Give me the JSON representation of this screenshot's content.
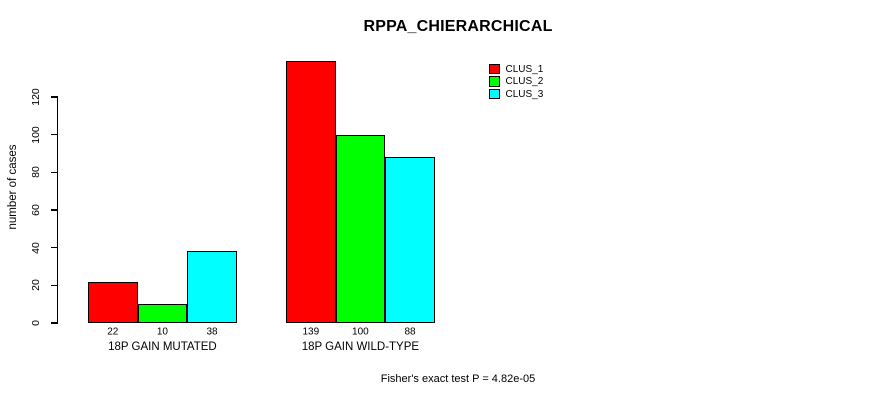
{
  "chart_data": {
    "type": "bar",
    "title": "RPPA_CHIERARCHICAL",
    "ylabel": "number of cases",
    "xlabel": "",
    "categories": [
      "18P GAIN MUTATED",
      "18P GAIN WILD-TYPE"
    ],
    "series": [
      {
        "name": "CLUS_1",
        "color": "#ff0000",
        "values": [
          22,
          139
        ]
      },
      {
        "name": "CLUS_2",
        "color": "#00ff00",
        "values": [
          10,
          100
        ]
      },
      {
        "name": "CLUS_3",
        "color": "#00ffff",
        "values": [
          38,
          88
        ]
      }
    ],
    "bar_value_labels": [
      [
        "22",
        "10",
        "38"
      ],
      [
        "139",
        "100",
        "88"
      ]
    ],
    "yticks": [
      "0",
      "20",
      "40",
      "60",
      "80",
      "100",
      "120"
    ],
    "ylim": [
      0,
      120
    ],
    "grid": false,
    "legend_position": "top-right",
    "footnote": "Fisher's exact test P = 4.82e-05",
    "axis_color": "#000000",
    "background_color": "#ffffff"
  }
}
